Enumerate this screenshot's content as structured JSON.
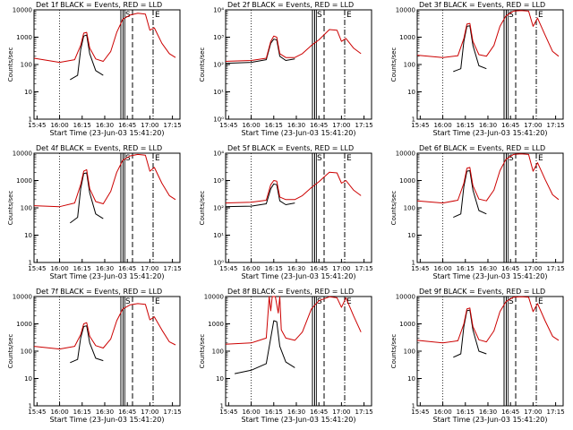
{
  "chart_data": [
    {
      "type": "line",
      "title": "Det 1f BLACK = Events, RED = LLD",
      "xlabel": "Start Time (23-Jun-03 15:41:20)",
      "ylabel": "Counts/sec",
      "x_ticks": [
        "15:45",
        "16:00",
        "16:15",
        "16:30",
        "16:45",
        "17:00",
        "17:15"
      ],
      "y_ticks": [
        "1",
        "10",
        "100",
        "1000",
        "10000"
      ],
      "ylim": [
        1,
        10000
      ],
      "y_scale": "log",
      "marks": {
        "saa_start": "S",
        "saa_end": "E"
      },
      "series": [
        {
          "color": "#000000",
          "x": [
            "16:07",
            "16:12",
            "16:14",
            "16:16",
            "16:18",
            "16:20",
            "16:24",
            "16:29"
          ],
          "values": [
            28,
            40,
            350,
            1100,
            1200,
            250,
            60,
            40
          ]
        },
        {
          "color": "#cc0000",
          "x": [
            "15:43",
            "16:00",
            "16:10",
            "16:14",
            "16:16",
            "16:18",
            "16:20",
            "16:24",
            "16:29",
            "16:34",
            "16:38",
            "16:42",
            "16:47",
            "16:52",
            "16:57",
            "17:00",
            "17:03",
            "17:08",
            "17:13",
            "17:17"
          ],
          "values": [
            170,
            120,
            150,
            500,
            1400,
            1500,
            400,
            160,
            130,
            300,
            1500,
            4500,
            6500,
            7500,
            7000,
            1800,
            2200,
            600,
            250,
            180
          ]
        }
      ]
    },
    {
      "type": "line",
      "title": "Det 2f BLACK = Events, RED = LLD",
      "xlabel": "Start Time (23-Jun-03 15:41:20)",
      "ylabel": "Counts/sec",
      "x_ticks": [
        "15:45",
        "16:00",
        "16:15",
        "16:30",
        "16:45",
        "17:00",
        "17:15"
      ],
      "y_ticks": [
        "10⁰",
        "10¹",
        "10²",
        "10³",
        "10⁴"
      ],
      "ylim": [
        1,
        10000
      ],
      "y_scale": "log",
      "marks": {
        "saa_start": "S",
        "saa_end": "E"
      },
      "series": [
        {
          "color": "#000000",
          "x": [
            "15:43",
            "16:00",
            "16:10",
            "16:13",
            "16:15",
            "16:17",
            "16:19",
            "16:23",
            "16:29"
          ],
          "values": [
            110,
            120,
            150,
            600,
            850,
            800,
            200,
            140,
            160
          ]
        },
        {
          "color": "#cc0000",
          "x": [
            "15:43",
            "16:00",
            "16:10",
            "16:13",
            "16:15",
            "16:17",
            "16:19",
            "16:23",
            "16:29",
            "16:34",
            "16:40",
            "16:45",
            "16:52",
            "16:57",
            "17:00",
            "17:03",
            "17:08",
            "17:13"
          ],
          "values": [
            130,
            140,
            170,
            700,
            1100,
            1000,
            250,
            180,
            180,
            250,
            500,
            800,
            1900,
            1800,
            700,
            900,
            400,
            250
          ]
        }
      ]
    },
    {
      "type": "line",
      "title": "Det 3f BLACK = Events, RED = LLD",
      "xlabel": "Start Time (23-Jun-03 15:41:20)",
      "ylabel": "Counts/sec",
      "x_ticks": [
        "15:45",
        "16:00",
        "16:15",
        "16:30",
        "16:45",
        "17:00",
        "17:15"
      ],
      "y_ticks": [
        "1",
        "10",
        "100",
        "1000",
        "10000"
      ],
      "ylim": [
        1,
        10000
      ],
      "y_scale": "log",
      "marks": {
        "saa_start": "S",
        "saa_end": "E"
      },
      "series": [
        {
          "color": "#000000",
          "x": [
            "16:07",
            "16:12",
            "16:14",
            "16:16",
            "16:18",
            "16:20",
            "16:24",
            "16:29"
          ],
          "values": [
            55,
            70,
            700,
            2500,
            2600,
            500,
            90,
            70
          ]
        },
        {
          "color": "#cc0000",
          "x": [
            "15:43",
            "16:00",
            "16:10",
            "16:14",
            "16:16",
            "16:18",
            "16:20",
            "16:24",
            "16:29",
            "16:34",
            "16:38",
            "16:42",
            "16:47",
            "16:52",
            "16:57",
            "17:00",
            "17:03",
            "17:08",
            "17:13",
            "17:17"
          ],
          "values": [
            220,
            180,
            210,
            900,
            3000,
            3200,
            700,
            230,
            200,
            500,
            2500,
            6000,
            9000,
            9500,
            9000,
            2500,
            5000,
            1200,
            300,
            200
          ]
        }
      ]
    },
    {
      "type": "line",
      "title": "Det 4f BLACK = Events, RED = LLD",
      "xlabel": "Start Time (23-Jun-03 15:41:20)",
      "ylabel": "Counts/sec",
      "x_ticks": [
        "15:45",
        "16:00",
        "16:15",
        "16:30",
        "16:45",
        "17:00",
        "17:15"
      ],
      "y_ticks": [
        "1",
        "10",
        "100",
        "1000",
        "10000"
      ],
      "ylim": [
        1,
        10000
      ],
      "y_scale": "log",
      "marks": {
        "saa_start": "S",
        "saa_end": "E"
      },
      "series": [
        {
          "color": "#000000",
          "x": [
            "16:07",
            "16:12",
            "16:14",
            "16:16",
            "16:18",
            "16:20",
            "16:24",
            "16:29"
          ],
          "values": [
            28,
            45,
            500,
            1800,
            1900,
            350,
            60,
            40
          ]
        },
        {
          "color": "#cc0000",
          "x": [
            "15:43",
            "16:00",
            "16:10",
            "16:14",
            "16:16",
            "16:18",
            "16:20",
            "16:24",
            "16:29",
            "16:34",
            "16:38",
            "16:42",
            "16:47",
            "16:52",
            "16:57",
            "17:00",
            "17:03",
            "17:08",
            "17:13",
            "17:17"
          ],
          "values": [
            120,
            110,
            150,
            700,
            2200,
            2500,
            500,
            170,
            140,
            400,
            2000,
            5500,
            8000,
            9000,
            8500,
            2200,
            3000,
            800,
            280,
            200
          ]
        }
      ]
    },
    {
      "type": "line",
      "title": "Det 5f BLACK = Events, RED = LLD",
      "xlabel": "Start Time (23-Jun-03 15:41:20)",
      "ylabel": "Counts/sec",
      "x_ticks": [
        "15:45",
        "16:00",
        "16:15",
        "16:30",
        "16:45",
        "17:00",
        "17:15"
      ],
      "y_ticks": [
        "10⁰",
        "10¹",
        "10²",
        "10³",
        "10⁴"
      ],
      "ylim": [
        1,
        10000
      ],
      "y_scale": "log",
      "marks": {
        "saa_start": "S",
        "saa_end": "E"
      },
      "series": [
        {
          "color": "#000000",
          "x": [
            "15:43",
            "16:00",
            "16:10",
            "16:13",
            "16:15",
            "16:17",
            "16:19",
            "16:23",
            "16:29"
          ],
          "values": [
            110,
            115,
            140,
            500,
            750,
            700,
            180,
            130,
            150
          ]
        },
        {
          "color": "#cc0000",
          "x": [
            "15:43",
            "16:00",
            "16:10",
            "16:13",
            "16:15",
            "16:17",
            "16:19",
            "16:23",
            "16:29",
            "16:34",
            "16:40",
            "16:45",
            "16:52",
            "16:57",
            "17:00",
            "17:03",
            "17:08",
            "17:13"
          ],
          "values": [
            150,
            160,
            190,
            700,
            1000,
            950,
            250,
            200,
            200,
            280,
            550,
            900,
            2000,
            1900,
            800,
            1000,
            450,
            280
          ]
        }
      ]
    },
    {
      "type": "line",
      "title": "Det 6f BLACK = Events, RED = LLD",
      "xlabel": "Start Time (23-Jun-03 15:41:20)",
      "ylabel": "Counts/sec",
      "x_ticks": [
        "15:45",
        "16:00",
        "16:15",
        "16:30",
        "16:45",
        "17:00",
        "17:15"
      ],
      "y_ticks": [
        "1",
        "10",
        "100",
        "1000",
        "10000"
      ],
      "ylim": [
        1,
        10000
      ],
      "y_scale": "log",
      "marks": {
        "saa_start": "S",
        "saa_end": "E"
      },
      "series": [
        {
          "color": "#000000",
          "x": [
            "16:07",
            "16:12",
            "16:14",
            "16:16",
            "16:18",
            "16:20",
            "16:24",
            "16:29"
          ],
          "values": [
            45,
            60,
            600,
            2200,
            2300,
            450,
            80,
            60
          ]
        },
        {
          "color": "#cc0000",
          "x": [
            "15:43",
            "16:00",
            "16:10",
            "16:14",
            "16:16",
            "16:18",
            "16:20",
            "16:24",
            "16:29",
            "16:34",
            "16:38",
            "16:42",
            "16:47",
            "16:52",
            "16:57",
            "17:00",
            "17:03",
            "17:08",
            "17:13",
            "17:17"
          ],
          "values": [
            180,
            150,
            190,
            800,
            2800,
            3000,
            650,
            210,
            180,
            450,
            2300,
            6000,
            9000,
            9500,
            9000,
            2200,
            4500,
            1100,
            300,
            200
          ]
        }
      ]
    },
    {
      "type": "line",
      "title": "Det 7f BLACK = Events, RED = LLD",
      "xlabel": "Start Time (23-Jun-03 15:41:20)",
      "ylabel": "Counts/sec",
      "x_ticks": [
        "15:45",
        "16:00",
        "16:15",
        "16:30",
        "16:45",
        "17:00",
        "17:15"
      ],
      "y_ticks": [
        "1",
        "10",
        "100",
        "1000",
        "10000"
      ],
      "ylim": [
        1,
        10000
      ],
      "y_scale": "log",
      "marks": {
        "saa_start": "S",
        "saa_end": "E"
      },
      "series": [
        {
          "color": "#000000",
          "x": [
            "16:07",
            "16:12",
            "16:14",
            "16:16",
            "16:18",
            "16:20",
            "16:24",
            "16:29"
          ],
          "values": [
            38,
            50,
            300,
            800,
            850,
            200,
            55,
            45
          ]
        },
        {
          "color": "#cc0000",
          "x": [
            "15:43",
            "16:00",
            "16:10",
            "16:14",
            "16:16",
            "16:18",
            "16:20",
            "16:24",
            "16:29",
            "16:34",
            "16:38",
            "16:42",
            "16:47",
            "16:52",
            "16:57",
            "17:00",
            "17:03",
            "17:08",
            "17:13",
            "17:17"
          ],
          "values": [
            150,
            120,
            150,
            400,
            1000,
            1100,
            350,
            160,
            130,
            280,
            1300,
            3500,
            5000,
            5500,
            5200,
            1400,
            1800,
            600,
            220,
            170
          ]
        }
      ]
    },
    {
      "type": "line",
      "title": "Det 8f BLACK = Events, RED = LLD",
      "xlabel": "Start Time (23-Jun-03 15:41:20)",
      "ylabel": "Counts/sec",
      "x_ticks": [
        "15:45",
        "16:00",
        "16:15",
        "16:30",
        "16:45",
        "17:00",
        "17:15"
      ],
      "y_ticks": [
        "1",
        "10",
        "100",
        "1000",
        "10000"
      ],
      "ylim": [
        1,
        10000
      ],
      "y_scale": "log",
      "marks": {
        "saa_start": "S",
        "saa_end": "E"
      },
      "series": [
        {
          "color": "#000000",
          "x": [
            "15:49",
            "16:00",
            "16:10",
            "16:13",
            "16:15",
            "16:17",
            "16:19",
            "16:23",
            "16:29"
          ],
          "values": [
            15,
            20,
            35,
            300,
            1300,
            1200,
            150,
            40,
            25
          ]
        },
        {
          "color": "#cc0000",
          "x": [
            "15:43",
            "16:00",
            "16:10",
            "16:12",
            "16:13",
            "16:14",
            "16:16",
            "16:18",
            "16:19",
            "16:20",
            "16:23",
            "16:29",
            "16:34",
            "16:40",
            "16:45",
            "16:52",
            "16:57",
            "17:00",
            "17:03",
            "17:08",
            "17:13"
          ],
          "values": [
            180,
            200,
            300,
            10000,
            3000,
            10000,
            10000,
            2500,
            10000,
            600,
            300,
            250,
            500,
            3500,
            7000,
            9800,
            9000,
            4000,
            9000,
            2000,
            500
          ]
        }
      ]
    },
    {
      "type": "line",
      "title": "Det 9f BLACK = Events, RED = LLD",
      "xlabel": "Start Time (23-Jun-03 15:41:20)",
      "ylabel": "Counts/sec",
      "x_ticks": [
        "15:45",
        "16:00",
        "16:15",
        "16:30",
        "16:45",
        "17:00",
        "17:15"
      ],
      "y_ticks": [
        "1",
        "10",
        "100",
        "1000",
        "10000"
      ],
      "ylim": [
        1,
        10000
      ],
      "y_scale": "log",
      "marks": {
        "saa_start": "S",
        "saa_end": "E"
      },
      "series": [
        {
          "color": "#000000",
          "x": [
            "16:07",
            "16:12",
            "16:14",
            "16:16",
            "16:18",
            "16:20",
            "16:24",
            "16:29"
          ],
          "values": [
            60,
            80,
            800,
            3000,
            3200,
            600,
            100,
            80
          ]
        },
        {
          "color": "#cc0000",
          "x": [
            "15:43",
            "16:00",
            "16:10",
            "16:14",
            "16:16",
            "16:18",
            "16:20",
            "16:24",
            "16:29",
            "16:34",
            "16:38",
            "16:42",
            "16:47",
            "16:52",
            "16:57",
            "17:00",
            "17:03",
            "17:08",
            "17:13",
            "17:17"
          ],
          "values": [
            250,
            200,
            240,
            1000,
            3500,
            3800,
            800,
            260,
            220,
            550,
            2800,
            6500,
            9500,
            9800,
            9500,
            2800,
            5500,
            1300,
            350,
            250
          ]
        }
      ]
    }
  ]
}
